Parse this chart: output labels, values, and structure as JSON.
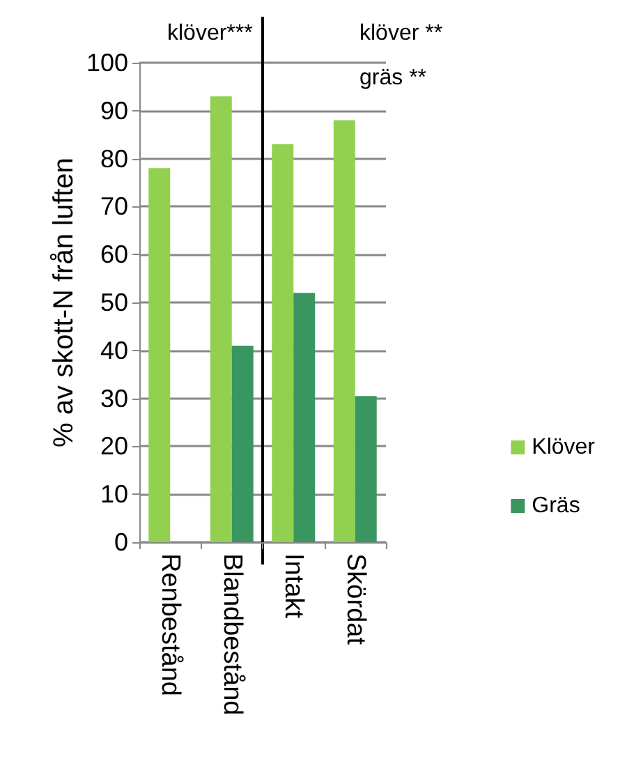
{
  "chart_data": {
    "type": "bar",
    "ylabel": "% av skott-N från luften",
    "categories": [
      "Renbestånd",
      "Blandbestånd",
      "Intakt",
      "Skördat"
    ],
    "series": [
      {
        "name": "Klöver",
        "color": "#92d050",
        "values": [
          78,
          93,
          83,
          88
        ]
      },
      {
        "name": "Gräs",
        "color": "#3a9660",
        "values": [
          null,
          41,
          52,
          30.5
        ]
      }
    ],
    "ylim": [
      0,
      100
    ],
    "yticks": [
      0,
      10,
      20,
      30,
      40,
      50,
      60,
      70,
      80,
      90,
      100
    ],
    "grid": "y",
    "legend": "right",
    "ref_lines": [
      {
        "axis": "x",
        "value": "Intakt",
        "color": "#000000"
      }
    ],
    "annotations": [
      "klöver***",
      "klöver **",
      "gräs **"
    ]
  }
}
